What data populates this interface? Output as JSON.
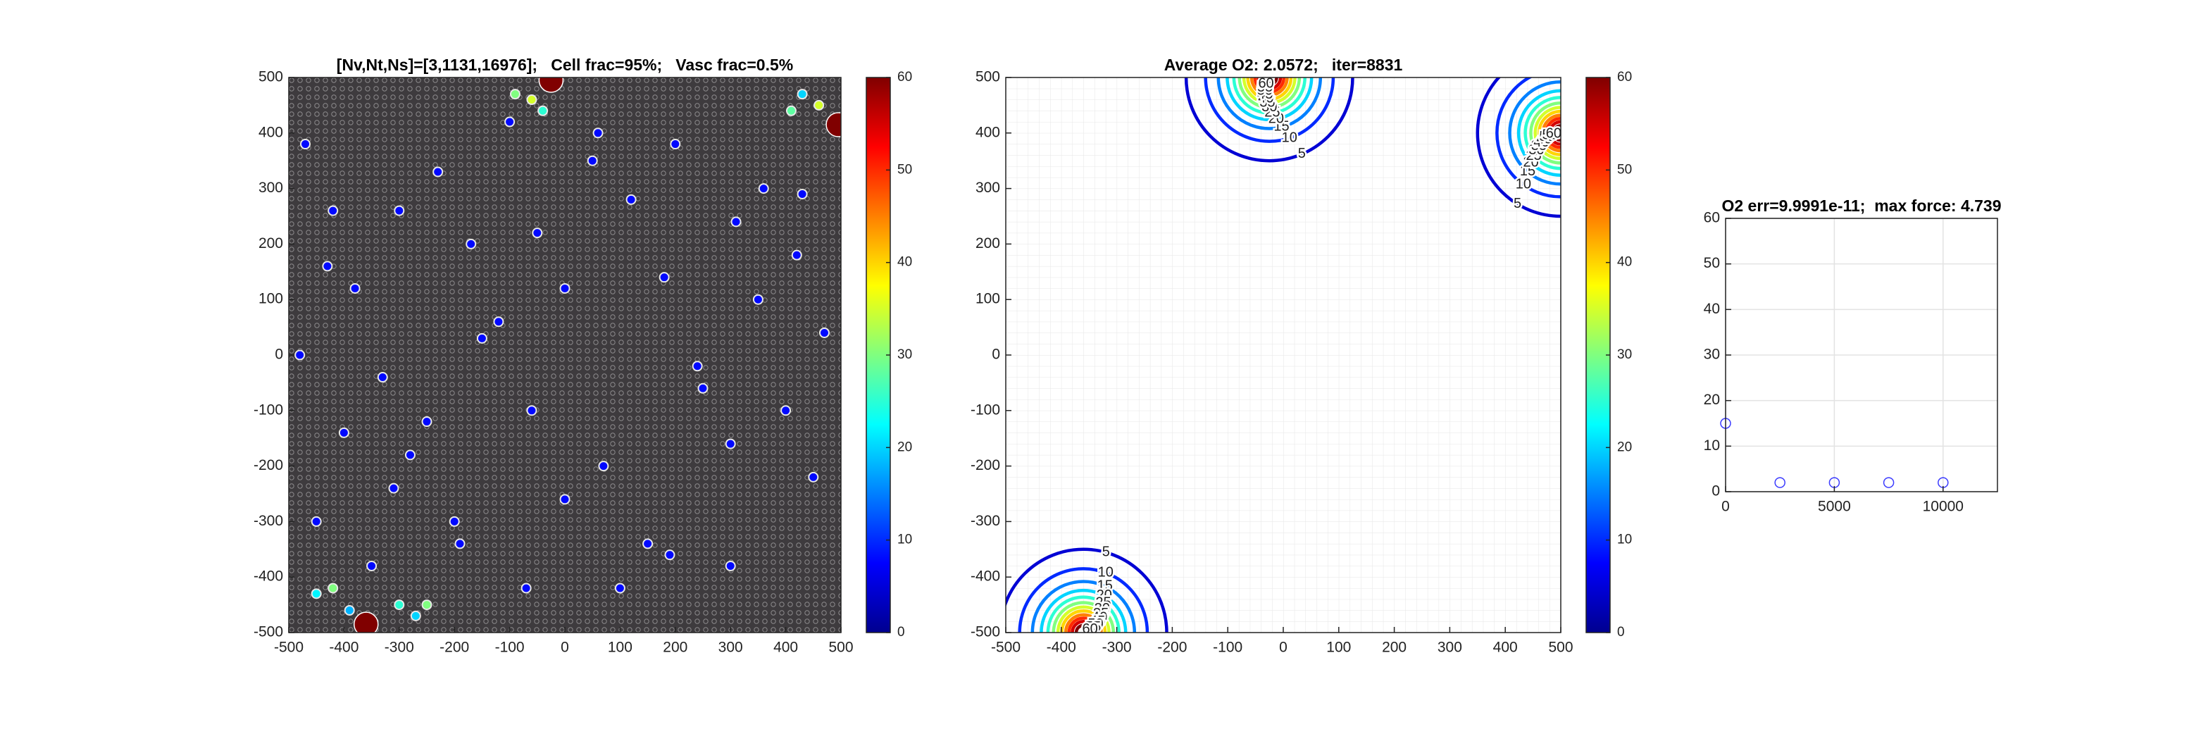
{
  "chart_data": [
    {
      "type": "cells",
      "title": "[Nv,Nt,Ns]=[3,1131,16976];   Cell frac=95%;   Vasc frac=0.5%",
      "x": [
        -470,
        -420,
        -380,
        -330,
        -280,
        -230,
        -170,
        -120,
        -60,
        0,
        60,
        120,
        180,
        240,
        300,
        360,
        420,
        470,
        -450,
        -350,
        -250,
        -150,
        -50,
        50,
        150,
        250,
        350,
        450,
        -480,
        -400,
        -300,
        -200,
        -100,
        0,
        100,
        200,
        300,
        400,
        -430,
        -310,
        -190,
        -70,
        70,
        190,
        310,
        430,
        -90,
        -60,
        -40,
        430,
        460,
        410,
        -450,
        -420,
        -390,
        -300,
        -270,
        -250,
        -360,
        -25,
        495
      ],
      "y": [
        380,
        260,
        120,
        -40,
        -180,
        330,
        200,
        60,
        -100,
        -260,
        400,
        280,
        140,
        -20,
        -160,
        300,
        180,
        40,
        -300,
        -380,
        -120,
        30,
        220,
        350,
        -340,
        -60,
        100,
        -220,
        0,
        -140,
        260,
        -300,
        420,
        120,
        -420,
        380,
        -380,
        -100,
        160,
        -240,
        -340,
        -420,
        -200,
        -360,
        240,
        290,
        470,
        460,
        440,
        470,
        450,
        440,
        -430,
        -420,
        -460,
        -450,
        -470,
        -450,
        -485,
        495,
        415
      ],
      "values": [
        8,
        8,
        8,
        8,
        8,
        8,
        8,
        8,
        8,
        8,
        8,
        8,
        8,
        8,
        8,
        8,
        8,
        8,
        8,
        8,
        8,
        8,
        8,
        8,
        8,
        8,
        8,
        8,
        8,
        8,
        8,
        8,
        8,
        8,
        8,
        8,
        8,
        8,
        8,
        8,
        8,
        8,
        8,
        8,
        8,
        8,
        30,
        35,
        25,
        20,
        35,
        28,
        22,
        30,
        18,
        25,
        20,
        30,
        60,
        60,
        60
      ],
      "xlim": [
        -500,
        500
      ],
      "ylim": [
        -500,
        500
      ],
      "xticks": [
        -500,
        -400,
        -300,
        -200,
        -100,
        0,
        100,
        200,
        300,
        400,
        500
      ],
      "yticks": [
        -500,
        -400,
        -300,
        -200,
        -100,
        0,
        100,
        200,
        300,
        400,
        500
      ],
      "colorbar": {
        "clim": [
          0,
          60
        ],
        "ticks": [
          0,
          10,
          20,
          30,
          40,
          50,
          60
        ]
      }
    },
    {
      "type": "contour",
      "title": "Average O2: 2.0572;   iter=8831",
      "sources": {
        "x": [
          -360,
          -25,
          500
        ],
        "y": [
          -500,
          500,
          400
        ]
      },
      "levels": [
        5,
        10,
        15,
        20,
        25,
        30,
        35,
        40,
        45,
        50,
        55,
        60
      ],
      "radii": [
        150,
        115,
        92,
        76,
        64,
        54,
        46,
        39,
        32,
        26,
        20,
        13
      ],
      "xlim": [
        -500,
        500
      ],
      "ylim": [
        -500,
        500
      ],
      "xticks": [
        -500,
        -400,
        -300,
        -200,
        -100,
        0,
        100,
        200,
        300,
        400,
        500
      ],
      "yticks": [
        -500,
        -400,
        -300,
        -200,
        -100,
        0,
        100,
        200,
        300,
        400,
        500
      ],
      "grid": true,
      "colorbar": {
        "clim": [
          0,
          60
        ],
        "ticks": [
          0,
          10,
          20,
          30,
          40,
          50,
          60
        ]
      }
    },
    {
      "type": "scatter",
      "title": "O2 err=9.9991e-11;  max force: 4.739",
      "x": [
        0,
        2500,
        5000,
        7500,
        10000
      ],
      "values": [
        15,
        2,
        2,
        2,
        2
      ],
      "color": "#3a3aff",
      "xlim": [
        0,
        12500
      ],
      "ylim": [
        0,
        60
      ],
      "xticks": [
        0,
        5000,
        10000
      ],
      "yticks": [
        0,
        10,
        20,
        30,
        40,
        50,
        60
      ],
      "grid": true
    }
  ]
}
